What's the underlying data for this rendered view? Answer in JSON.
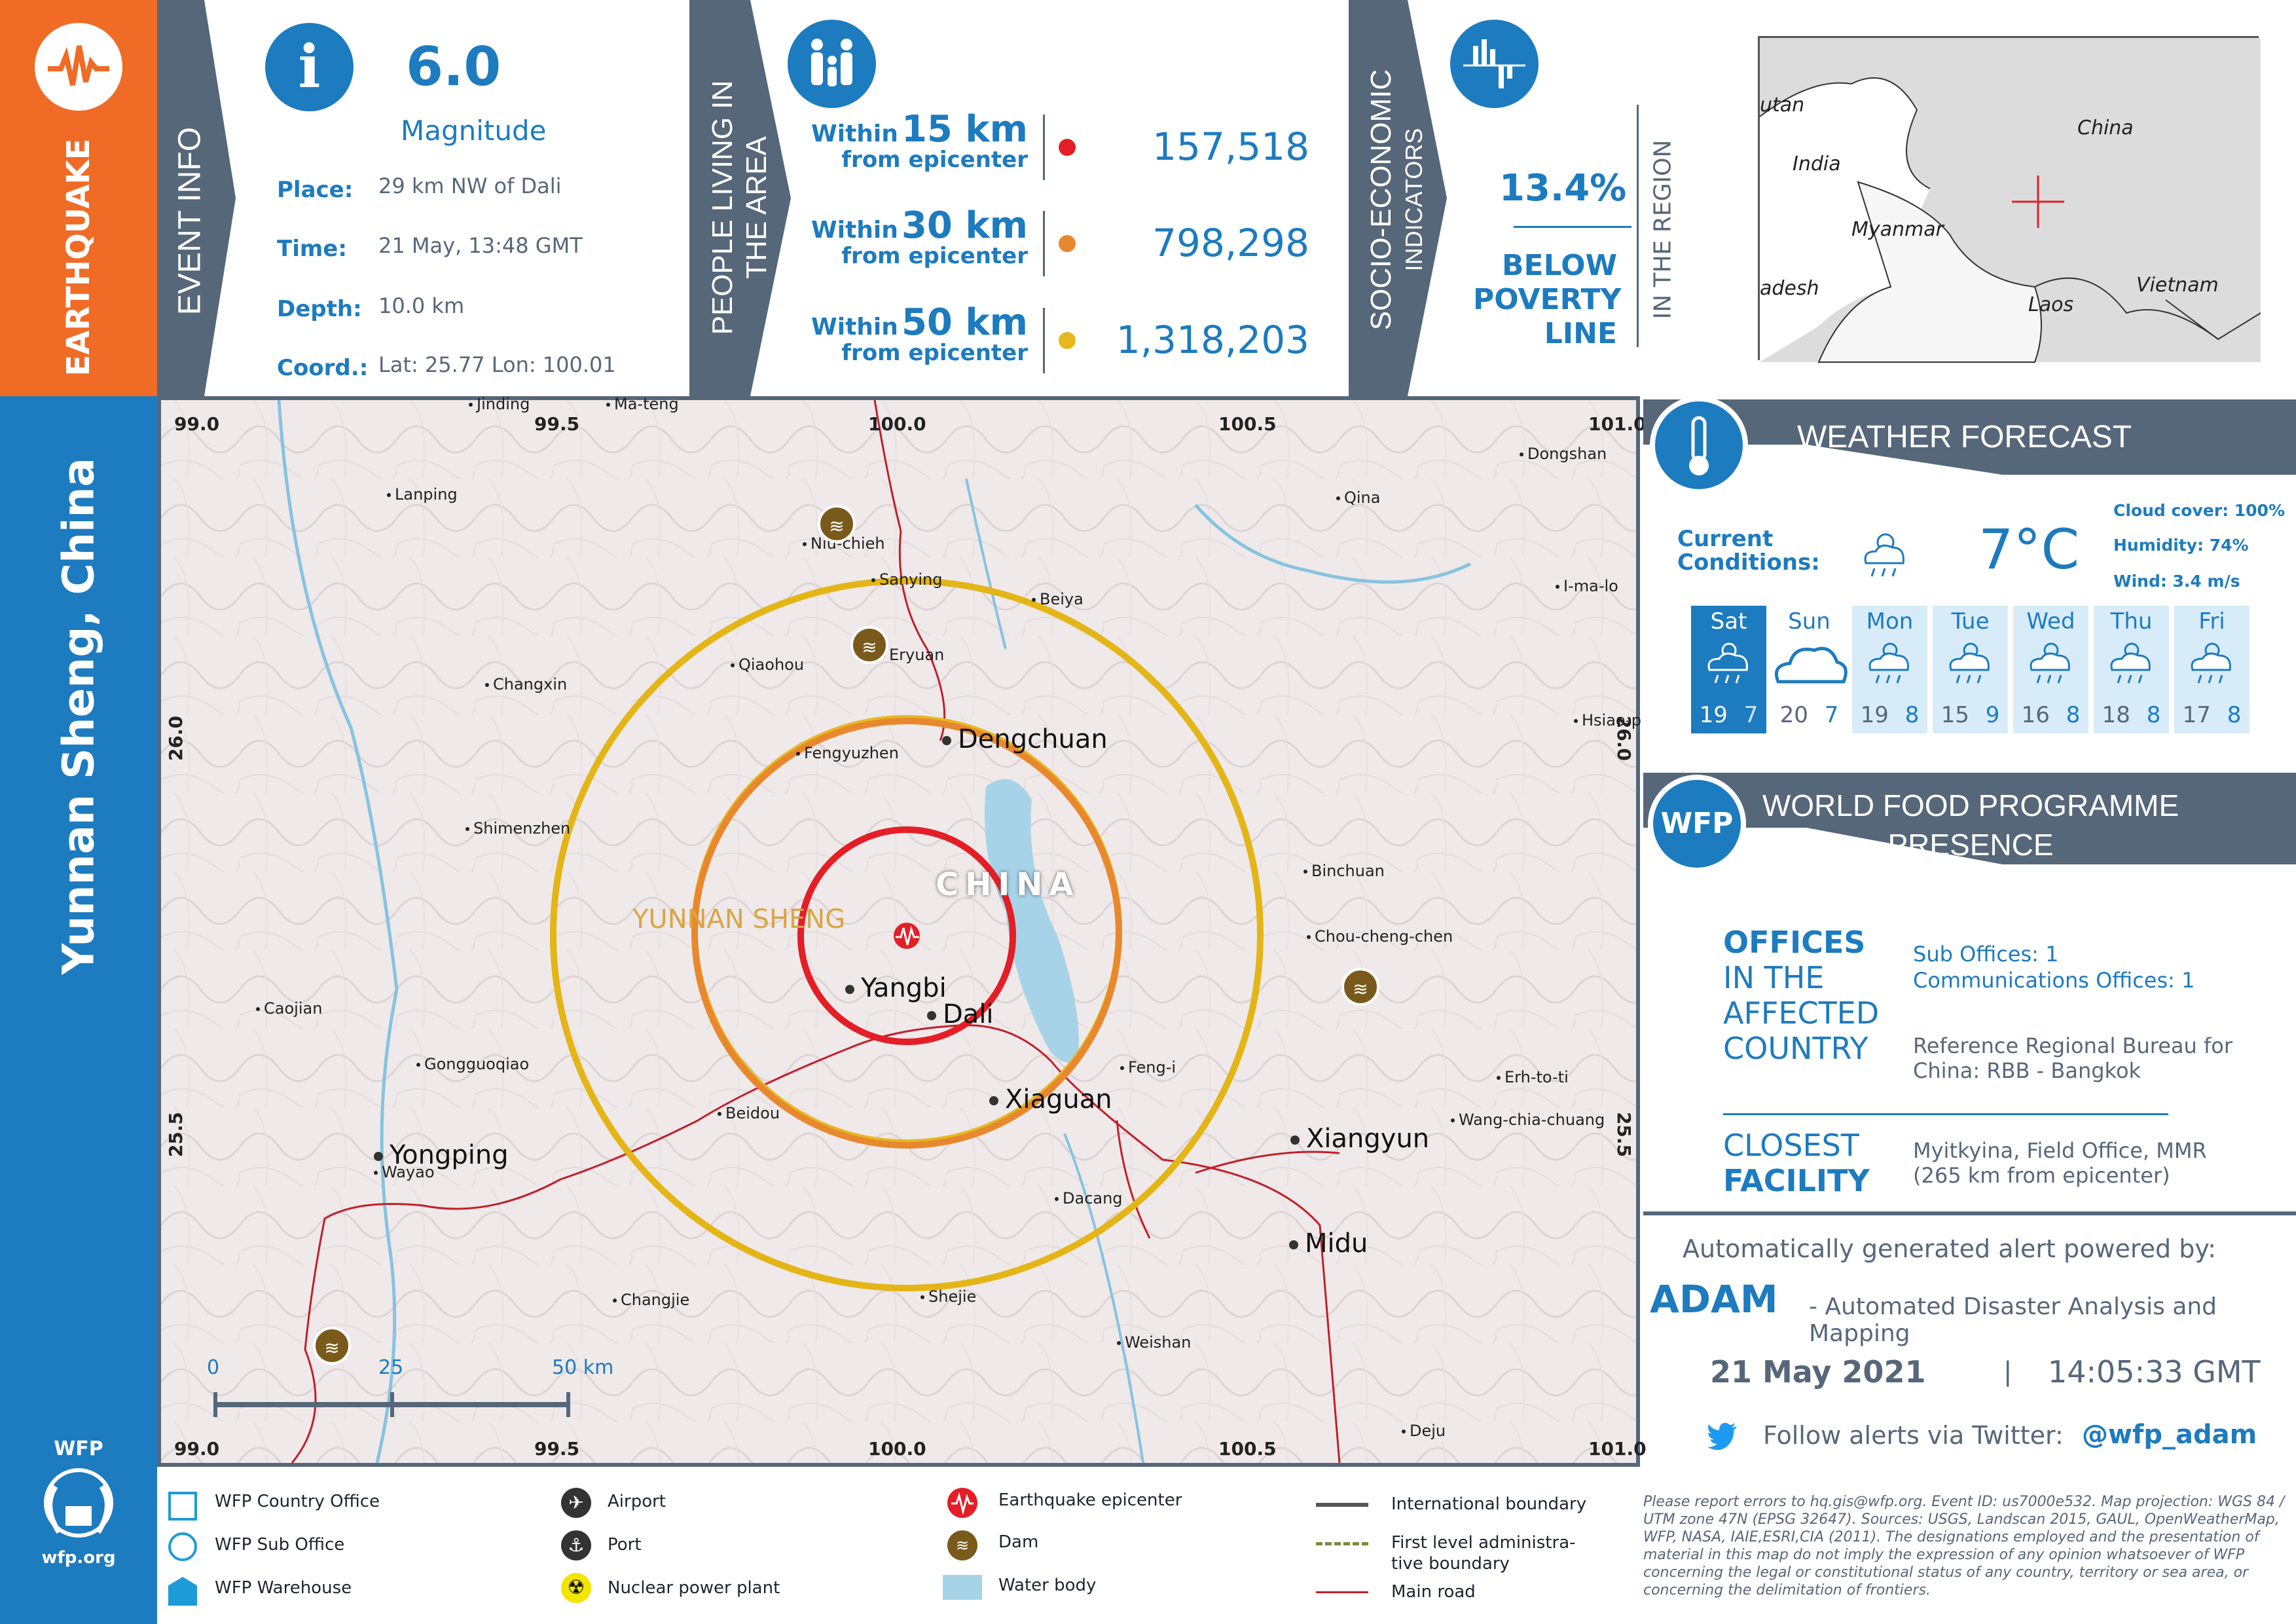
{
  "side": {
    "event_type": "EARTHQUAKE",
    "location": "Yunnan Sheng, China",
    "org_logo": "WFP",
    "org_url": "wfp.org"
  },
  "event_info": {
    "title": "EVENT INFO",
    "magnitude": "6.0",
    "magnitude_label": "Magnitude",
    "place_label": "Place:",
    "place": "29 km NW of Dali",
    "time_label": "Time:",
    "time": "21 May, 13:48 GMT",
    "depth_label": "Depth:",
    "depth": "10.0 km",
    "coord_label": "Coord.:",
    "coord": "Lat: 25.77  Lon: 100.01"
  },
  "people": {
    "title_line1": "PEOPLE LIVING IN",
    "title_line2": "THE AREA",
    "rows": [
      {
        "within": "Within",
        "dist": "15 km",
        "from": "from epicenter",
        "count": "157,518",
        "color": "#e41e26"
      },
      {
        "within": "Within",
        "dist": "30 km",
        "from": "from epicenter",
        "count": "798,298",
        "color": "#e8882e"
      },
      {
        "within": "Within",
        "dist": "50 km",
        "from": "from epicenter",
        "count": "1,318,203",
        "color": "#e6b81e"
      }
    ]
  },
  "socio": {
    "title_line1": "SOCIO-ECONOMIC",
    "title_line2": "INDICATORS",
    "percent": "13.4%",
    "label_line1": "BELOW",
    "label_line2": "POVERTY",
    "label_line3": "LINE",
    "region": "IN THE REGION"
  },
  "inset": {
    "labels": [
      "utan",
      "India",
      "China",
      "Myanmar",
      "adesh",
      "Laos",
      "Vietnam"
    ]
  },
  "map": {
    "grid_top": [
      "99.0",
      "99.5",
      "100.0",
      "100.5",
      "101.0"
    ],
    "grid_bottom": [
      "99.0",
      "99.5",
      "100.0",
      "100.5",
      "101.0"
    ],
    "grid_left": [
      "26.0",
      "25.5"
    ],
    "grid_right": [
      "26.0",
      "25.5"
    ],
    "region_label": "YUNNAN SHENG",
    "country_label": "CHINA",
    "places_small": [
      "Jinding",
      "Ma-teng",
      "Lanping",
      "Dongshan",
      "Qina",
      "Niu-chieh",
      "Sanying",
      "Beiya",
      "Eryuan",
      "Qiaohou",
      "Changxin",
      "I-ma-lo",
      "Fengyuzhen",
      "Hsiao-p",
      "Shimenzhen",
      "Binchuan",
      "Chou-cheng-chen",
      "Caojian",
      "Gongguoqiao",
      "Feng-i",
      "Erh-to-ti",
      "Beidou",
      "Wang-chia-chuang",
      "Wayao",
      "Dacang",
      "Changjie",
      "Shejie",
      "Weishan",
      "Deju"
    ],
    "places_big": [
      "Dengchuan",
      "Yangbi",
      "Dali",
      "Xiaguan",
      "Yongping",
      "Xiangyun",
      "Midu"
    ],
    "scale": [
      "0",
      "25",
      "50 km"
    ]
  },
  "weather": {
    "title": "WEATHER FORECAST",
    "current_label_line1": "Current",
    "current_label_line2": "Conditions:",
    "temp": "7°C",
    "cloud": "Cloud cover: 100%",
    "humidity": "Humidity: 74%",
    "wind": "Wind: 3.4 m/s",
    "days": [
      {
        "name": "Sat",
        "hi": "19",
        "lo": "7",
        "icon": "rain-icon"
      },
      {
        "name": "Sun",
        "hi": "20",
        "lo": "7",
        "icon": "cloud-icon"
      },
      {
        "name": "Mon",
        "hi": "19",
        "lo": "8",
        "icon": "rain-icon"
      },
      {
        "name": "Tue",
        "hi": "15",
        "lo": "9",
        "icon": "rain-icon"
      },
      {
        "name": "Wed",
        "hi": "16",
        "lo": "8",
        "icon": "rain-icon"
      },
      {
        "name": "Thu",
        "hi": "18",
        "lo": "8",
        "icon": "rain-icon"
      },
      {
        "name": "Fri",
        "hi": "17",
        "lo": "8",
        "icon": "rain-icon"
      }
    ]
  },
  "wfp": {
    "badge": "WFP",
    "title_line1": "WORLD FOOD PROGRAMME",
    "title_line2": "PRESENCE",
    "offices_line1": "OFFICES",
    "offices_line2": "IN THE",
    "offices_line3": "AFFECTED",
    "offices_line4": "COUNTRY",
    "sub_offices": "Sub Offices: 1",
    "comm_offices": "Communications Offices: 1",
    "rb_line1": "Reference Regional Bureau for",
    "rb_line2": "China: RBB - Bangkok",
    "closest_line1": "CLOSEST",
    "closest_line2": "FACILITY",
    "facility_line1": "Myitkyina, Field Office, MMR",
    "facility_line2": "(265 km from epicenter)"
  },
  "footer": {
    "powered": "Automatically generated alert powered by:",
    "adam": "ADAM",
    "adam_full": "- Automated Disaster Analysis and Mapping",
    "date": "21 May 2021",
    "sep": "|",
    "time": "14:05:33 GMT",
    "twitter_text": "Follow alerts via Twitter:",
    "twitter_handle": "@wfp_adam"
  },
  "legend": {
    "items": [
      "WFP Country Office",
      "WFP Sub Office",
      "WFP Warehouse",
      "Airport",
      "Port",
      "Nuclear power plant",
      "Earthquake epicenter",
      "Dam",
      "Water body",
      "International boundary",
      "First level administra-",
      "tive boundary",
      "Main road"
    ]
  },
  "disclaimer": "Please report errors to hq.gis@wfp.org. Event ID: us7000e532. Map projection: WGS 84 / UTM zone 47N (EPSG 32647). Sources: USGS, Landscan 2015, GAUL, OpenWeatherMap, WFP, NASA, IAIE,ESRI,CIA (2011). The designations employed and the presentation of material in this map do not imply the expression of any opinion whatsoever of WFP concerning the legal or constitutional status of any country, territory or sea area, or concerning the delimitation of frontiers.",
  "colors": {
    "orange": "#ef6b26",
    "blue": "#1d7bbf",
    "slate": "#56677a",
    "red": "#e41e26"
  }
}
